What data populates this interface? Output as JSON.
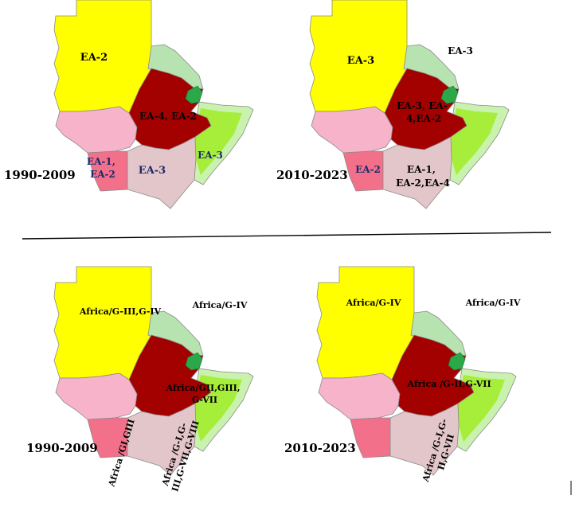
{
  "colors": {
    "sudan": "#ffff00",
    "ethiopia": "#a30000",
    "somalia": "#a6ee3a",
    "somalia_edge": "#c9f2ae",
    "south_sudan": "#f7b3c9",
    "uganda": "#f2708a",
    "kenya": "#e3c6c9",
    "eritrea": "#b6e3b0",
    "djibouti": "#2aa84a",
    "label_dark": "#000000",
    "label_navy": "#1c2a6b"
  },
  "divider": true,
  "panels": [
    {
      "period": "1990-2009",
      "labels": [
        {
          "id": "sudan",
          "text": "EA-2"
        },
        {
          "id": "ethiopia",
          "text": "EA-4, EA-2"
        },
        {
          "id": "somalia",
          "text": "EA-3"
        },
        {
          "id": "uganda",
          "lines": [
            "EA-1,",
            "EA-2"
          ]
        },
        {
          "id": "kenya",
          "text": "EA-3"
        }
      ]
    },
    {
      "period": "2010-2023",
      "labels": [
        {
          "id": "sudan",
          "text": "EA-3"
        },
        {
          "id": "eritrea",
          "text": "EA-3"
        },
        {
          "id": "ethiopia",
          "lines": [
            "EA-3, EA-",
            "4,EA-2"
          ]
        },
        {
          "id": "uganda",
          "text": "EA-2"
        },
        {
          "id": "kenya",
          "lines": [
            "EA-1,",
            "EA-2,EA-4"
          ]
        }
      ]
    },
    {
      "period": "1990-2009",
      "labels": [
        {
          "id": "sudan",
          "text": "Africa/G-III,G-IV"
        },
        {
          "id": "eritrea",
          "text": "Africa/G-IV"
        },
        {
          "id": "ethiopia",
          "lines": [
            "Africa/GII,GIII,",
            "G-VII"
          ]
        },
        {
          "id": "uganda",
          "text": "Africa /GI,GIII"
        },
        {
          "id": "kenya",
          "lines": [
            "Africa /G-I,G-",
            "III,G-VII,G-VIII"
          ]
        }
      ]
    },
    {
      "period": "2010-2023",
      "labels": [
        {
          "id": "sudan",
          "text": "Africa/G-IV"
        },
        {
          "id": "eritrea",
          "text": "Africa/G-IV"
        },
        {
          "id": "ethiopia",
          "text": "Africa /G-II,G-VII"
        },
        {
          "id": "kenya",
          "lines": [
            "Africa /G-I,G-",
            "II,G-VII"
          ]
        }
      ]
    }
  ]
}
